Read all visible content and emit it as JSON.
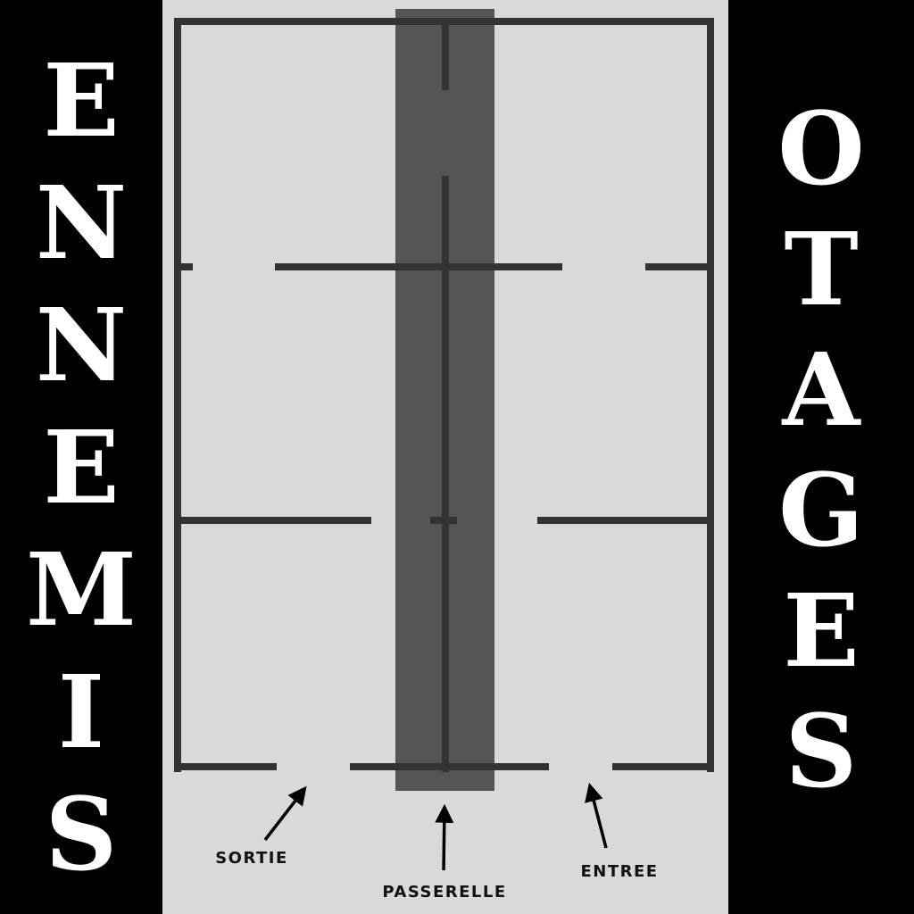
{
  "left_title": {
    "text": "ENNEMIS",
    "letters": [
      "E",
      "N",
      "N",
      "E",
      "M",
      "I",
      "S"
    ]
  },
  "right_title": {
    "text": "OTAGES",
    "letters": [
      "O",
      "T",
      "A",
      "G",
      "E",
      "S"
    ]
  },
  "labels": {
    "exit": "SORTIE",
    "walkway": "PASSERELLE",
    "entrance": "ENTREE"
  },
  "colors": {
    "background_side": "#000000",
    "map_background": "#d9d9d9",
    "walls": "#333333",
    "walkway_band": "#555555",
    "letters": "#ffffff"
  }
}
